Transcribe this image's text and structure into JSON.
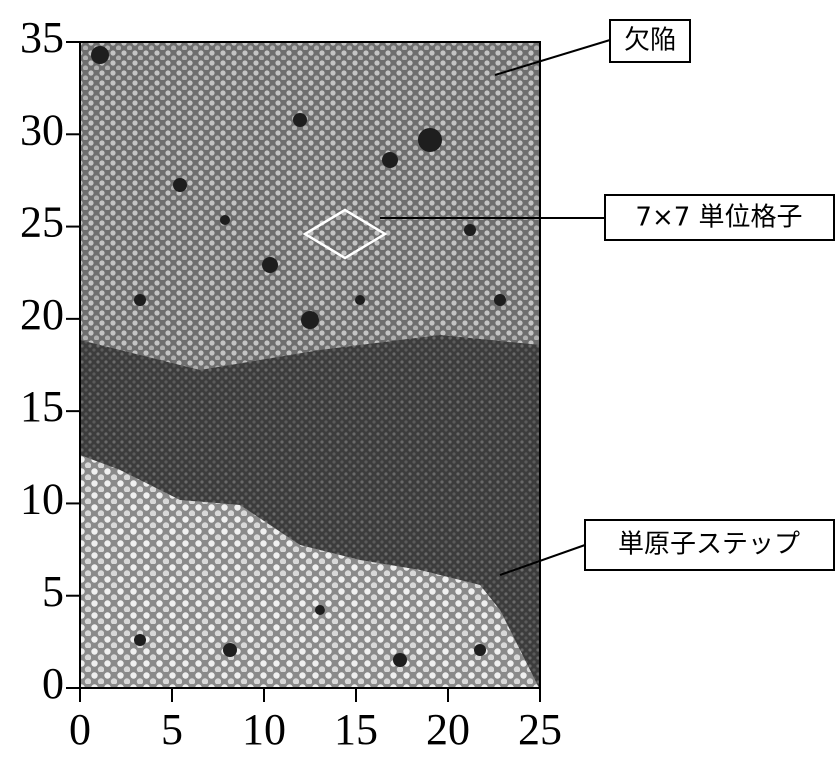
{
  "chart_data": {
    "type": "image",
    "xlim": [
      0,
      25
    ],
    "ylim": [
      0,
      35
    ],
    "xticks": [
      0,
      5,
      10,
      15,
      20,
      25
    ],
    "yticks": [
      0,
      5,
      10,
      15,
      20,
      25,
      30,
      35
    ],
    "annotations": [
      "欠陥",
      "7×7 単位格子",
      "単原子ステップ"
    ]
  }
}
